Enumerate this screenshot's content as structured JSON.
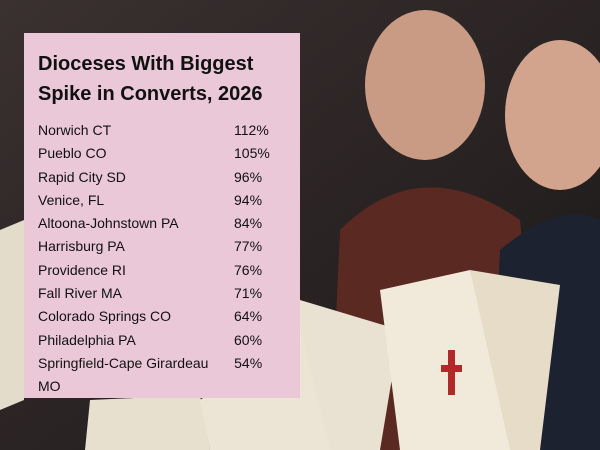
{
  "title": "Dioceses With Biggest Spike in Converts, 2026",
  "table": {
    "rows": [
      [
        "Norwich CT",
        "112%"
      ],
      [
        "Pueblo CO",
        "105%"
      ],
      [
        "Rapid City SD",
        "96%"
      ],
      [
        "Venice, FL",
        "94%"
      ],
      [
        "Altoona-Johnstown PA",
        "84%"
      ],
      [
        "Harrisburg PA",
        "77%"
      ],
      [
        "Providence RI",
        "76%"
      ],
      [
        "Fall River MA",
        "71%"
      ],
      [
        "Colorado Springs CO",
        "64%"
      ],
      [
        "Philadelphia PA",
        "60%"
      ],
      [
        "Springfield-Cape Girardeau MO",
        "54%"
      ]
    ]
  }
}
